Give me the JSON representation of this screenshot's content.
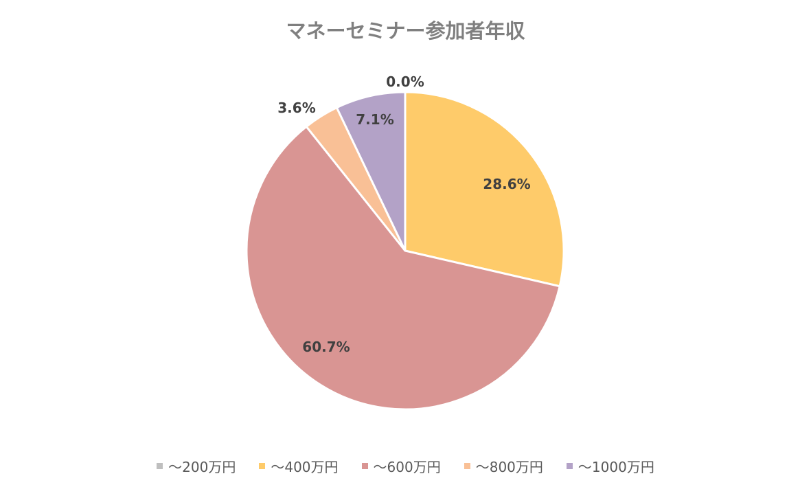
{
  "chart_data": {
    "type": "pie",
    "title": "マネーセミナー参加者年収",
    "categories": [
      "～200万円",
      "～400万円",
      "～600万円",
      "～800万円",
      "～1000万円"
    ],
    "values": [
      0.0,
      28.6,
      60.7,
      3.6,
      7.1
    ],
    "labels": [
      "0.0%",
      "28.6%",
      "60.7%",
      "3.6%",
      "7.1%"
    ],
    "colors": [
      "#bfbfbf",
      "#fecb6a",
      "#d99593",
      "#f9c096",
      "#b3a2c7"
    ],
    "start_angle": "12 o'clock, clockwise",
    "legend_position": "bottom"
  }
}
